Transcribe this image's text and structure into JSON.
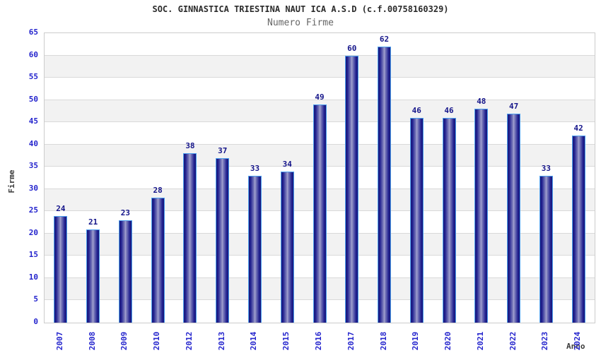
{
  "header": {
    "title": "SOC. GINNASTICA TRIESTINA NAUT ICA A.S.D (c.f.00758160329)",
    "subtitle": "Numero Firme"
  },
  "chart_data": {
    "type": "bar",
    "title": "SOC. GINNASTICA TRIESTINA NAUT ICA A.S.D (c.f.00758160329)",
    "subtitle": "Numero Firme",
    "xlabel": "Anno",
    "ylabel": "Firme",
    "categories": [
      "2007",
      "2008",
      "2009",
      "2010",
      "2012",
      "2013",
      "2014",
      "2015",
      "2016",
      "2017",
      "2018",
      "2019",
      "2020",
      "2021",
      "2022",
      "2023",
      "2024"
    ],
    "values": [
      24,
      21,
      23,
      28,
      38,
      37,
      33,
      34,
      49,
      60,
      62,
      46,
      46,
      48,
      47,
      33,
      42
    ],
    "ylim": [
      0,
      65
    ],
    "ytick_step": 5,
    "yticks": [
      0,
      5,
      10,
      15,
      20,
      25,
      30,
      35,
      40,
      45,
      50,
      55,
      60,
      65
    ],
    "grid": true,
    "banded_background": true,
    "legend": null,
    "bar_value_labels_shown": true,
    "colors": {
      "bar_edge": "#181878",
      "bar_center": "#a9a9d5",
      "bar_outline": "#4d9fee",
      "tick_label": "#2424cd",
      "value_label": "#15158a",
      "title": "#2b2b2b",
      "subtitle": "#666666",
      "band_gray": "#f2f2f2",
      "gridline": "#d9d9d9",
      "plot_border": "#cccccc",
      "background": "#ffffff"
    }
  }
}
